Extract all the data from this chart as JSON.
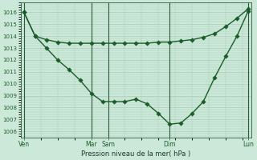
{
  "xlabel": "Pression niveau de la mer( hPa )",
  "bg_color": "#cce8d8",
  "grid_color": "#aaccb8",
  "line_color": "#1a5c2a",
  "ylim_min": 1005.5,
  "ylim_max": 1016.8,
  "figsize": [
    3.2,
    2.0
  ],
  "dpi": 100,
  "flat_x": [
    0,
    1,
    2,
    3,
    4,
    5,
    6,
    7,
    8,
    9,
    10,
    11,
    12,
    13,
    14,
    15,
    16,
    17,
    18,
    19,
    20
  ],
  "flat_y": [
    1016.0,
    1014.0,
    1013.7,
    1013.5,
    1013.4,
    1013.4,
    1013.4,
    1013.4,
    1013.4,
    1013.4,
    1013.4,
    1013.4,
    1013.5,
    1013.5,
    1013.6,
    1013.7,
    1013.9,
    1014.2,
    1014.8,
    1015.5,
    1016.3
  ],
  "dip_x": [
    0,
    1,
    2,
    3,
    4,
    5,
    6,
    7,
    8,
    9,
    10,
    11,
    12,
    13,
    14,
    15,
    16,
    17,
    18,
    19,
    20
  ],
  "dip_y": [
    1016.0,
    1014.0,
    1013.0,
    1012.0,
    1011.2,
    1010.3,
    1009.2,
    1008.5,
    1008.5,
    1008.5,
    1008.7,
    1008.3,
    1007.5,
    1006.6,
    1006.7,
    1007.5,
    1008.5,
    1010.5,
    1012.3,
    1014.0,
    1016.1
  ],
  "xtick_positions": [
    0,
    6,
    7.5,
    13,
    20
  ],
  "xtick_labels": [
    "Ven",
    "Mar",
    "Sam",
    "Dim",
    "Lun"
  ],
  "vline_positions": [
    0,
    6,
    7.5,
    13,
    20
  ]
}
